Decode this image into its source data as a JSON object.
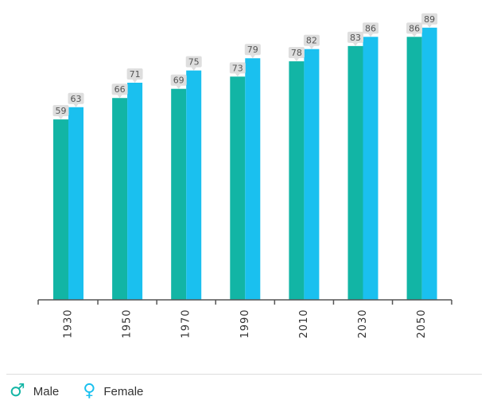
{
  "chart_data": {
    "type": "bar",
    "categories": [
      "1930",
      "1950",
      "1970",
      "1990",
      "2010",
      "2030",
      "2050"
    ],
    "series": [
      {
        "name": "Male",
        "values": [
          59,
          66,
          69,
          73,
          78,
          83,
          86
        ],
        "color": "#12b5a5",
        "icon": "male-symbol-icon"
      },
      {
        "name": "Female",
        "values": [
          63,
          71,
          75,
          79,
          82,
          86,
          89
        ],
        "color": "#1ac0ef",
        "icon": "female-symbol-icon"
      }
    ],
    "ylim": [
      0,
      100
    ],
    "grid": false,
    "legend": "bottom-left",
    "label_box_color": "#dedede",
    "axis_color": "#555555"
  },
  "legend": {
    "male_symbol": "♂",
    "male_label": "Male",
    "female_symbol": "♀",
    "female_label": "Female"
  }
}
